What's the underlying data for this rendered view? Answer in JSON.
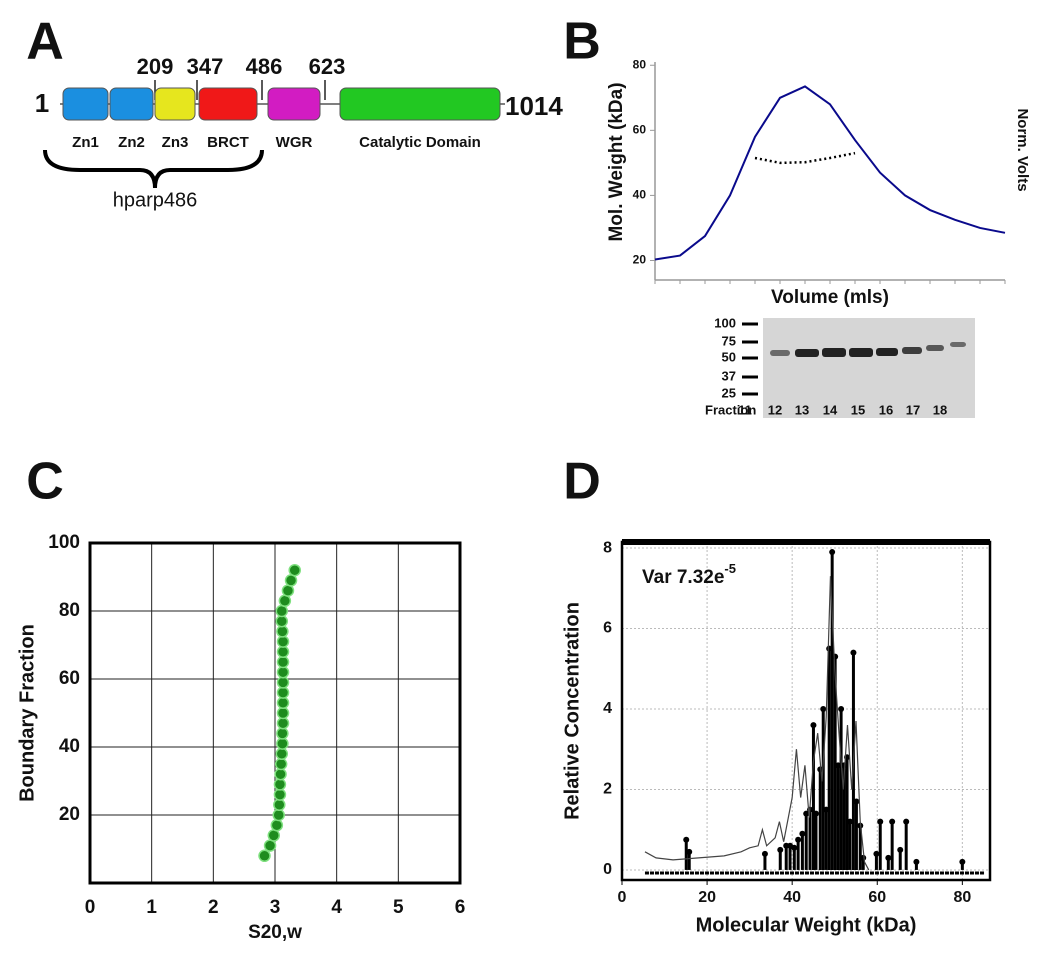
{
  "panel_labels": [
    "A",
    "B",
    "C",
    "D"
  ],
  "domain_diagram": {
    "start": "1",
    "end": "1014",
    "positions": [
      "209",
      "347",
      "486",
      "623"
    ],
    "domains": [
      {
        "label": "Zn1",
        "color": "#1b8fe0"
      },
      {
        "label": "Zn2",
        "color": "#1b8fe0"
      },
      {
        "label": "Zn3",
        "color": "#e6e61e"
      },
      {
        "label": "BRCT",
        "color": "#f01818"
      },
      {
        "label": "WGR",
        "color": "#d21cc2"
      },
      {
        "label": "Catalytic Domain",
        "color": "#22c822"
      }
    ],
    "bracket_label": "hparp486"
  },
  "gel": {
    "markers": [
      100,
      75,
      50,
      37,
      25
    ],
    "label": "Fraction",
    "fractions": [
      11,
      12,
      13,
      14,
      15,
      16,
      17,
      18
    ]
  },
  "chart_data": [
    {
      "type": "line",
      "x_label": "Volume (mls)",
      "y_label": "Mol. Weight (kDa)",
      "y2_label": "Norm. Volts",
      "categories": [
        null,
        null,
        null,
        null,
        null,
        null,
        null,
        null,
        null,
        null,
        null,
        null,
        null,
        null,
        null
      ],
      "series": [
        {
          "color": "#0a0a8c",
          "style": "solid",
          "values": [
            20.3,
            21.5,
            27.5,
            40,
            58,
            70,
            73.5,
            68,
            57,
            47,
            40,
            35.5,
            32.5,
            30,
            28.5
          ]
        },
        {
          "color": "#000000",
          "style": "dotted",
          "values": [
            null,
            null,
            null,
            null,
            51.5,
            50,
            50.2,
            51.5,
            53,
            null,
            null,
            null,
            null,
            null,
            null
          ]
        }
      ],
      "ylim": [
        14,
        81
      ],
      "yticks": [
        20,
        40,
        60,
        80
      ]
    },
    {
      "type": "scatter",
      "x_label": "S20,w",
      "y_label": "Boundary Fraction",
      "color": "#1e8c1e",
      "x": [
        2.83,
        2.92,
        2.98,
        3.03,
        3.06,
        3.07,
        3.08,
        3.08,
        3.09,
        3.1,
        3.11,
        3.12,
        3.12,
        3.13,
        3.13,
        3.13,
        3.13,
        3.13,
        3.13,
        3.13,
        3.13,
        3.13,
        3.12,
        3.11,
        3.11,
        3.16,
        3.21,
        3.26,
        3.32
      ],
      "values": [
        8,
        11,
        14,
        17,
        20,
        23,
        26,
        29,
        32,
        35,
        38,
        41,
        44,
        47,
        50,
        53,
        56,
        59,
        62,
        65,
        68,
        71,
        74,
        77,
        80,
        83,
        86,
        89,
        92
      ],
      "xlim": [
        0,
        6
      ],
      "xticks": [
        0,
        1,
        2,
        3,
        4,
        5,
        6
      ],
      "ylim": [
        0,
        100
      ],
      "yticks": [
        20,
        40,
        60,
        80,
        100
      ],
      "grid": true
    },
    {
      "type": "stem",
      "x_label": "Molecular Weight (kDa)",
      "y_label": "Relative Concentration",
      "annotation": "Var 7.32e",
      "annotation_superscript": "-5",
      "series": [
        {
          "kind": "stem",
          "color": "#000000",
          "x": [
            15.1,
            15.8,
            33.6,
            37.2,
            38.6,
            39.5,
            40.5,
            41.4,
            42.4,
            43.3,
            44.2,
            45,
            45.6,
            46.6,
            47.3,
            48,
            48.7,
            49.4,
            50.1,
            50.8,
            51.5,
            52.2,
            52.9,
            53.6,
            54.4,
            55.1,
            56,
            56.7,
            59.8,
            60.7,
            62.6,
            63.5,
            65.4,
            66.8,
            69.2,
            80
          ],
          "values": [
            0.75,
            0.45,
            0.4,
            0.5,
            0.6,
            0.6,
            0.55,
            0.75,
            0.9,
            1.4,
            1.5,
            3.6,
            1.4,
            2.5,
            4.0,
            1.5,
            5.5,
            7.9,
            5.3,
            2.6,
            4.0,
            2.6,
            2.8,
            1.2,
            5.4,
            1.7,
            1.1,
            0.3,
            0.4,
            1.2,
            0.3,
            1.2,
            0.5,
            1.2,
            0.2,
            0.2
          ]
        },
        {
          "kind": "line",
          "color": "#444444",
          "x": [
            5.4,
            8,
            12,
            18,
            24,
            28,
            30,
            32,
            33,
            34,
            36,
            37,
            38,
            40,
            41,
            42,
            43,
            44,
            45,
            46,
            47,
            48,
            49,
            50,
            51,
            52,
            53,
            54,
            55,
            56,
            57,
            58
          ],
          "values": [
            0.45,
            0.3,
            0.25,
            0.3,
            0.35,
            0.45,
            0.55,
            0.6,
            1.0,
            0.6,
            0.8,
            1.2,
            0.7,
            1.8,
            3.0,
            1.8,
            2.6,
            1.3,
            2.7,
            3.4,
            2.2,
            3.8,
            7.3,
            5.0,
            3.4,
            2.0,
            3.6,
            2.0,
            3.7,
            1.2,
            0.2,
            0
          ]
        }
      ],
      "xlim": [
        0,
        86.5
      ],
      "xticks": [
        0,
        20,
        40,
        60,
        80
      ],
      "ylim": [
        -0.25,
        8.15
      ],
      "yticks": [
        0,
        2,
        4,
        6,
        8
      ],
      "grid": true
    }
  ]
}
